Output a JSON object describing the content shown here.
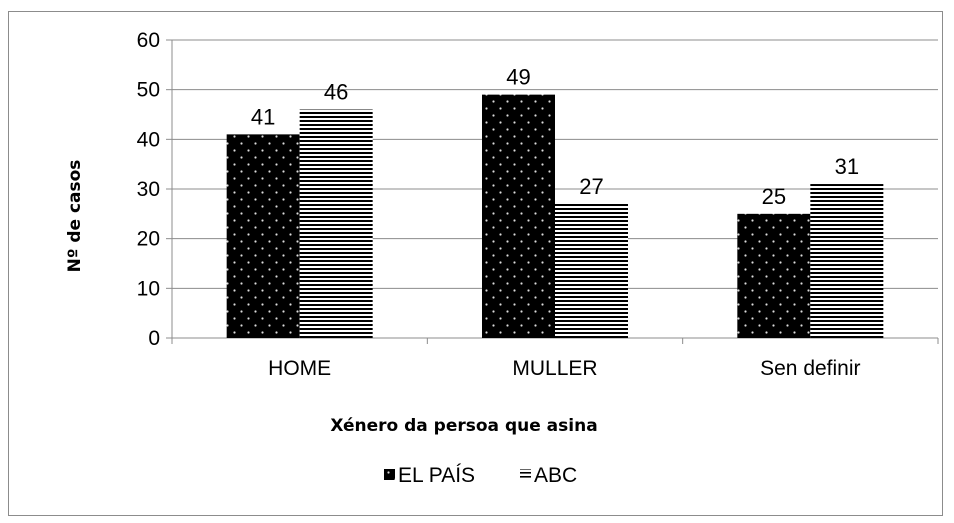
{
  "chart_data": {
    "type": "bar",
    "categories": [
      "HOME",
      "MULLER",
      "Sen definir"
    ],
    "series": [
      {
        "name": "EL PAÍS",
        "values": [
          41,
          49,
          25
        ],
        "pattern": "dots",
        "color": "#000000"
      },
      {
        "name": "ABC",
        "values": [
          46,
          27,
          31
        ],
        "pattern": "horizontal-lines",
        "color": "#000000"
      }
    ],
    "xlabel": "Xénero da persoa que asina",
    "ylabel": "Nº de casos",
    "ylim": [
      0,
      60
    ],
    "yticks": [
      0,
      10,
      20,
      30,
      40,
      50,
      60
    ],
    "grid": true,
    "legend": "bottom",
    "data_labels": true
  }
}
